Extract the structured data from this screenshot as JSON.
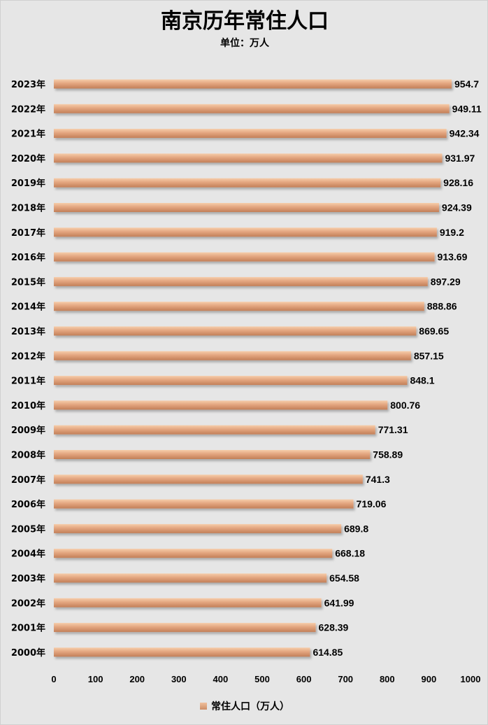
{
  "chart_data": {
    "type": "bar",
    "orientation": "horizontal",
    "title": "南京历年常住人口",
    "subtitle": "单位：万人",
    "categories": [
      "2023年",
      "2022年",
      "2021年",
      "2020年",
      "2019年",
      "2018年",
      "2017年",
      "2016年",
      "2015年",
      "2014年",
      "2013年",
      "2012年",
      "2011年",
      "2010年",
      "2009年",
      "2008年",
      "2007年",
      "2006年",
      "2005年",
      "2004年",
      "2003年",
      "2002年",
      "2001年",
      "2000年"
    ],
    "series": [
      {
        "name": "常住人口（万人）",
        "values": [
          954.7,
          949.11,
          942.34,
          931.97,
          928.16,
          924.39,
          919.2,
          913.69,
          897.29,
          888.86,
          869.65,
          857.15,
          848.1,
          800.76,
          771.31,
          758.89,
          741.3,
          719.06,
          689.8,
          668.18,
          654.58,
          641.99,
          628.39,
          614.85
        ],
        "value_labels": [
          "954.7",
          "949.11",
          "942.34",
          "931.97",
          "928.16",
          "924.39",
          "919.2",
          "913.69",
          "897.29",
          "888.86",
          "869.65",
          "857.15",
          "848.1",
          "800.76",
          "771.31",
          "758.89",
          "741.3",
          "719.06",
          "689.8",
          "668.18",
          "654.58",
          "641.99",
          "628.39",
          "614.85"
        ]
      }
    ],
    "xlim": [
      0,
      1000
    ],
    "xticks": [
      "0",
      "100",
      "200",
      "300",
      "400",
      "500",
      "600",
      "700",
      "800",
      "900",
      "1000"
    ],
    "grid": false,
    "legend_position": "bottom",
    "colors": {
      "bar_light": "#f3c6a3",
      "bar_mid": "#e0a27b",
      "bar_dark": "#c4835b",
      "background": "#e6e6e6"
    }
  }
}
